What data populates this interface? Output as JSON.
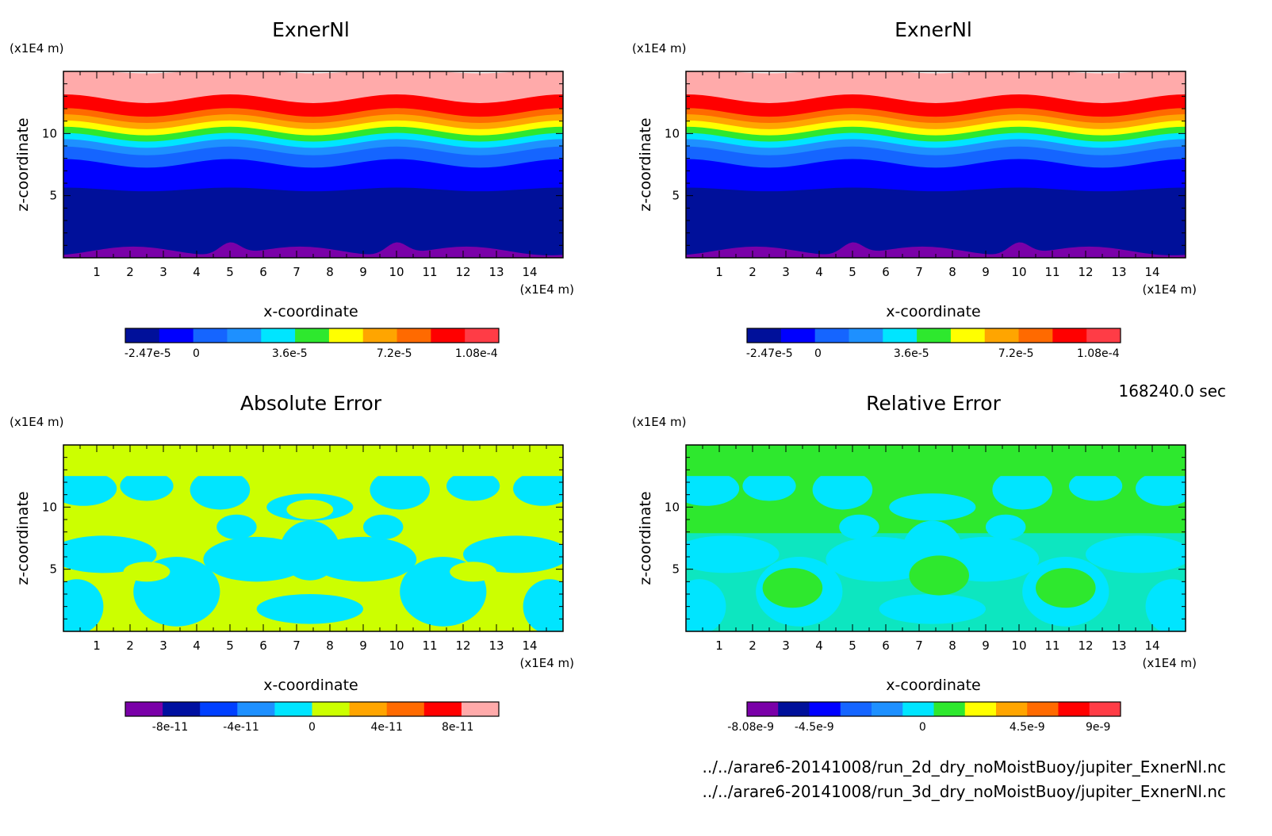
{
  "time_label": "168240.0 sec",
  "files": [
    "../../arare6-20141008/run_2d_dry_noMoistBuoy/jupiter_ExnerNl.nc",
    "../../arare6-20141008/run_3d_dry_noMoistBuoy/jupiter_ExnerNl.nc"
  ],
  "chart_data": [
    {
      "type": "heatmap",
      "title": "ExnerNl",
      "xlabel": "x-coordinate",
      "ylabel": "z-coordinate",
      "x_unit": "(x1E4 m)",
      "y_unit": "(x1E4 m)",
      "xlim": [
        0,
        15
      ],
      "ylim": [
        0,
        15
      ],
      "x_ticks": [
        "1",
        "2",
        "3",
        "4",
        "5",
        "6",
        "7",
        "8",
        "9",
        "10",
        "11",
        "12",
        "13",
        "14"
      ],
      "y_ticks": [
        "5",
        "10"
      ],
      "colorbar": {
        "labels": [
          "-2.47e-5",
          "0",
          "3.6e-5",
          "7.2e-5",
          "1.08e-4"
        ],
        "colors": [
          "#00109a",
          "#0000ff",
          "#1565ff",
          "#1e90ff",
          "#00e5ff",
          "#2ee82e",
          "#ffff00",
          "#ffa500",
          "#ff6a00",
          "#ff0000",
          "#ff3c46"
        ]
      }
    },
    {
      "type": "heatmap",
      "title": "ExnerNl",
      "xlabel": "x-coordinate",
      "ylabel": "z-coordinate",
      "x_unit": "(x1E4 m)",
      "y_unit": "(x1E4 m)",
      "xlim": [
        0,
        15
      ],
      "ylim": [
        0,
        15
      ],
      "x_ticks": [
        "1",
        "2",
        "3",
        "4",
        "5",
        "6",
        "7",
        "8",
        "9",
        "10",
        "11",
        "12",
        "13",
        "14"
      ],
      "y_ticks": [
        "5",
        "10"
      ],
      "colorbar": {
        "labels": [
          "-2.47e-5",
          "0",
          "3.6e-5",
          "7.2e-5",
          "1.08e-4"
        ],
        "colors": [
          "#00109a",
          "#0000ff",
          "#1565ff",
          "#1e90ff",
          "#00e5ff",
          "#2ee82e",
          "#ffff00",
          "#ffa500",
          "#ff6a00",
          "#ff0000",
          "#ff3c46"
        ]
      }
    },
    {
      "type": "heatmap",
      "title": "Absolute Error",
      "xlabel": "x-coordinate",
      "ylabel": "z-coordinate",
      "x_unit": "(x1E4 m)",
      "y_unit": "(x1E4 m)",
      "xlim": [
        0,
        15
      ],
      "ylim": [
        0,
        15
      ],
      "x_ticks": [
        "1",
        "2",
        "3",
        "4",
        "5",
        "6",
        "7",
        "8",
        "9",
        "10",
        "11",
        "12",
        "13",
        "14"
      ],
      "y_ticks": [
        "5",
        "10"
      ],
      "colorbar": {
        "labels": [
          "-8e-11",
          "-4e-11",
          "0",
          "4e-11",
          "8e-11"
        ],
        "colors": [
          "#7a00a8",
          "#0010a0",
          "#0040ff",
          "#1e90ff",
          "#00e5ff",
          "#ccff00",
          "#ffa500",
          "#ff6a00",
          "#ff0000",
          "#ffaaaa"
        ]
      }
    },
    {
      "type": "heatmap",
      "title": "Relative Error",
      "xlabel": "x-coordinate",
      "ylabel": "z-coordinate",
      "x_unit": "(x1E4 m)",
      "y_unit": "(x1E4 m)",
      "xlim": [
        0,
        15
      ],
      "ylim": [
        0,
        15
      ],
      "x_ticks": [
        "1",
        "2",
        "3",
        "4",
        "5",
        "6",
        "7",
        "8",
        "9",
        "10",
        "11",
        "12",
        "13",
        "14"
      ],
      "y_ticks": [
        "5",
        "10"
      ],
      "colorbar": {
        "labels": [
          "-8.08e-9",
          "-4.5e-9",
          "0",
          "4.5e-9",
          "9e-9"
        ],
        "colors": [
          "#7a00a8",
          "#00109a",
          "#0000ff",
          "#1565ff",
          "#1e90ff",
          "#00e5ff",
          "#2ee82e",
          "#ffff00",
          "#ffa500",
          "#ff6a00",
          "#ff0000",
          "#ff3c46"
        ]
      }
    }
  ]
}
